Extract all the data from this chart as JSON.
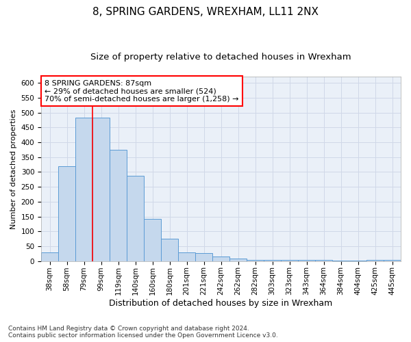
{
  "title1": "8, SPRING GARDENS, WREXHAM, LL11 2NX",
  "title2": "Size of property relative to detached houses in Wrexham",
  "xlabel": "Distribution of detached houses by size in Wrexham",
  "ylabel": "Number of detached properties",
  "categories": [
    "38sqm",
    "58sqm",
    "79sqm",
    "99sqm",
    "119sqm",
    "140sqm",
    "160sqm",
    "180sqm",
    "201sqm",
    "221sqm",
    "242sqm",
    "262sqm",
    "282sqm",
    "303sqm",
    "323sqm",
    "343sqm",
    "364sqm",
    "384sqm",
    "404sqm",
    "425sqm",
    "445sqm"
  ],
  "values": [
    30,
    320,
    483,
    483,
    375,
    288,
    143,
    75,
    30,
    28,
    15,
    8,
    5,
    5,
    5,
    5,
    5,
    2,
    2,
    5,
    5
  ],
  "bar_color": "#c5d8ed",
  "bar_edge_color": "#5b9bd5",
  "vline_color": "red",
  "annotation_text": "8 SPRING GARDENS: 87sqm\n← 29% of detached houses are smaller (524)\n70% of semi-detached houses are larger (1,258) →",
  "annotation_box_color": "white",
  "annotation_box_edge": "red",
  "ylim": [
    0,
    620
  ],
  "yticks": [
    0,
    50,
    100,
    150,
    200,
    250,
    300,
    350,
    400,
    450,
    500,
    550,
    600
  ],
  "grid_color": "#d0d8e8",
  "bg_color": "#eaf0f8",
  "footnote": "Contains HM Land Registry data © Crown copyright and database right 2024.\nContains public sector information licensed under the Open Government Licence v3.0.",
  "title1_fontsize": 11,
  "title2_fontsize": 9.5,
  "xlabel_fontsize": 9,
  "ylabel_fontsize": 8,
  "tick_fontsize": 7.5,
  "annotation_fontsize": 8,
  "footnote_fontsize": 6.5
}
